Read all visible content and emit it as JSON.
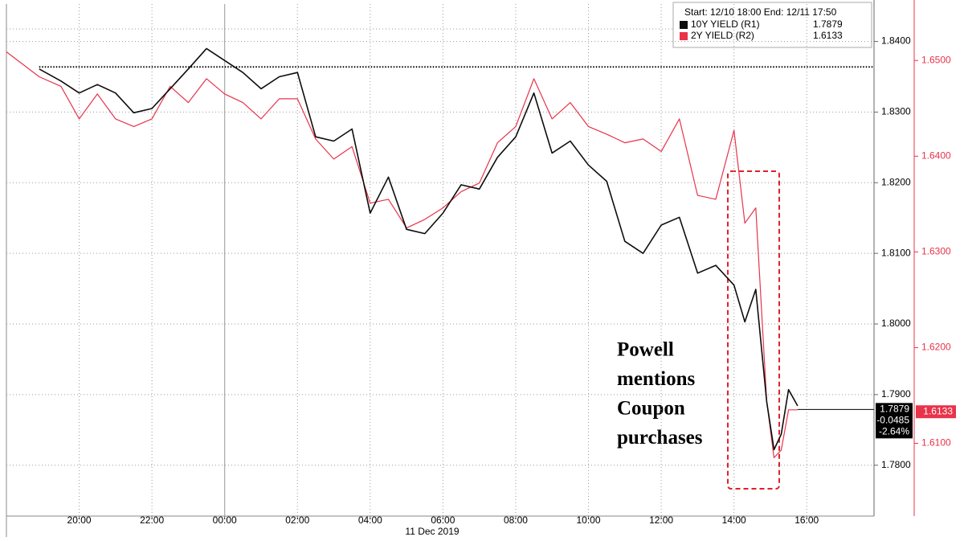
{
  "chart_data": {
    "type": "line",
    "x_date_label": "11 Dec 2019",
    "legend_header": "Start: 12/10 18:00 End: 12/11 17:50",
    "x": [
      -6,
      -5.1,
      -4.5,
      -4,
      -3.5,
      -3,
      -2.5,
      -2,
      -1.5,
      -1,
      -0.5,
      0,
      0.5,
      1,
      1.5,
      2,
      2.5,
      3,
      3.5,
      4,
      4.5,
      5,
      5.5,
      6,
      6.5,
      7,
      7.5,
      8,
      8.5,
      9,
      9.5,
      10,
      10.5,
      11,
      11.5,
      12,
      12.5,
      13,
      13.5,
      14,
      14.3,
      14.6,
      14.9,
      15.1,
      15.3,
      15.5,
      15.75
    ],
    "xlim": [
      -6,
      17.85
    ],
    "xticks": [
      {
        "value": -4,
        "label": "20:00"
      },
      {
        "value": -2,
        "label": "22:00"
      },
      {
        "value": 0,
        "label": "00:00"
      },
      {
        "value": 2,
        "label": "02:00"
      },
      {
        "value": 4,
        "label": "04:00"
      },
      {
        "value": 6,
        "label": "06:00"
      },
      {
        "value": 8,
        "label": "08:00"
      },
      {
        "value": 10,
        "label": "10:00"
      },
      {
        "value": 12,
        "label": "12:00"
      },
      {
        "value": 14,
        "label": "14:00"
      },
      {
        "value": 16,
        "label": "16:00"
      }
    ],
    "ylim": [
      1.7728,
      1.8453
    ],
    "yticks": [
      {
        "value": 1.78,
        "label": "1.7800"
      },
      {
        "value": 1.79,
        "label": "1.7900"
      },
      {
        "value": 1.8,
        "label": "1.8000"
      },
      {
        "value": 1.81,
        "label": "1.8100"
      },
      {
        "value": 1.82,
        "label": "1.8200"
      },
      {
        "value": 1.83,
        "label": "1.8300"
      },
      {
        "value": 1.84,
        "label": "1.8400"
      }
    ],
    "y2lim": [
      1.6024,
      1.6559
    ],
    "y2ticks": [
      {
        "value": 1.61,
        "label": "1.6100"
      },
      {
        "value": 1.62,
        "label": "1.6200"
      },
      {
        "value": 1.63,
        "label": "1.6300"
      },
      {
        "value": 1.64,
        "label": "1.6400"
      },
      {
        "value": 1.65,
        "label": "1.6500"
      }
    ],
    "grid": true,
    "reference_line": 1.8364,
    "series": [
      {
        "name": "10Y YIELD (R1)",
        "color": "#0d0d0d",
        "axis": "y",
        "last_value": 1.7879,
        "change": -0.0485,
        "change_pct": {
          "value": -2.64,
          "label": "-2.64%"
        },
        "values": [
          null,
          1.8361,
          1.8344,
          1.8327,
          1.8339,
          1.8327,
          1.8299,
          1.8305,
          1.8333,
          1.8361,
          1.839,
          1.8373,
          1.8356,
          1.8333,
          1.835,
          1.8356,
          1.8265,
          1.8259,
          1.8276,
          1.8157,
          1.8208,
          1.8134,
          1.8128,
          1.8157,
          1.8197,
          1.8191,
          1.8236,
          1.8265,
          1.8327,
          1.8242,
          1.8259,
          1.8225,
          1.8202,
          1.8117,
          1.81,
          1.814,
          1.8151,
          1.8072,
          1.8083,
          1.8055,
          1.8003,
          1.8049,
          1.789,
          1.7822,
          1.7844,
          1.7907,
          1.7884
        ]
      },
      {
        "name": "2Y YIELD (R2)",
        "color": "#e8334a",
        "axis": "y2",
        "last_value": 1.6133,
        "values": [
          1.6509,
          1.6483,
          1.6473,
          1.6439,
          1.6465,
          1.6439,
          1.6431,
          1.6439,
          1.6473,
          1.6456,
          1.6481,
          1.6465,
          1.6456,
          1.6439,
          1.646,
          1.646,
          1.6418,
          1.6397,
          1.641,
          1.6351,
          1.6355,
          1.6325,
          1.6334,
          1.6346,
          1.6363,
          1.6372,
          1.6414,
          1.6431,
          1.6481,
          1.6439,
          1.6456,
          1.6431,
          1.6423,
          1.6414,
          1.6418,
          1.6405,
          1.6439,
          1.6359,
          1.6355,
          1.6427,
          1.633,
          1.6346,
          1.6144,
          1.6085,
          1.6093,
          1.6135,
          1.6135
        ]
      }
    ],
    "annotation": [
      "Powell",
      "mentions",
      "Coupon",
      "purchases"
    ]
  }
}
